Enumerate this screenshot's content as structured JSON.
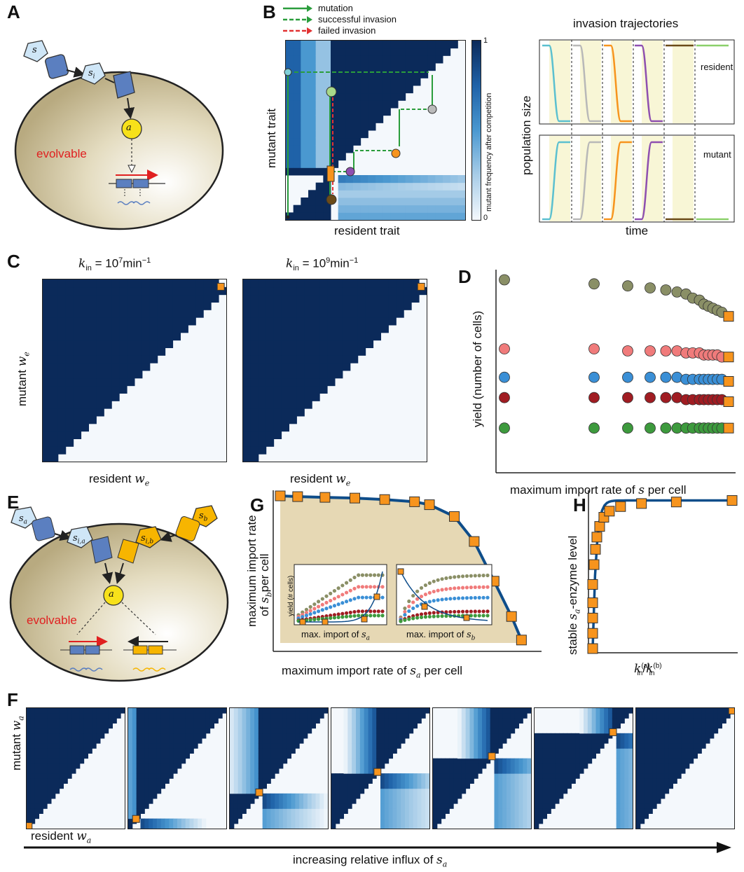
{
  "panels": {
    "A": {
      "letter": "A",
      "evolvable": "evolvable",
      "s": "s",
      "si": "s",
      "si_sub": "i",
      "a": "a"
    },
    "B": {
      "letter": "B",
      "legend": [
        "mutation",
        "successful invasion",
        "failed invasion"
      ],
      "ylabel": "mutant trait",
      "xlabel": "resident trait",
      "colorbar_label": "mutant frequency after competition",
      "colorbar_ticks": [
        "1",
        "0"
      ],
      "traj_title": "invasion trajectories",
      "traj_ylabel": "population size",
      "traj_xlabel": "time",
      "traj_resident": "resident",
      "traj_mutant": "mutant",
      "colors": {
        "mutation": "#2a9d3c",
        "success": "#2a9d3c",
        "failed": "#e23232"
      }
    },
    "C": {
      "letter": "C",
      "title1_pre": "k",
      "title1_sub": "in",
      "title1_eq": " = 10",
      "title1_exp": "7",
      "title1_unit": "min",
      "title1_unit_exp": "−1",
      "title2_pre": "k",
      "title2_sub": "in",
      "title2_eq": " = 10",
      "title2_exp": "9",
      "title2_unit": "min",
      "title2_unit_exp": "−1",
      "ylabel": "mutant ",
      "ylabel_var": "w",
      "ylabel_sub": "e",
      "xlabel": "resident ",
      "xlabel_var": "w",
      "xlabel_sub": "e"
    },
    "D": {
      "letter": "D",
      "ylabel": "yield (number of cells)",
      "xlabel": "maximum import rate of ",
      "xlabel_var": "s",
      "xlabel_end": " per cell"
    },
    "E": {
      "letter": "E",
      "evolvable": "evolvable",
      "sa": "s",
      "sa_sub": "a",
      "sb": "s",
      "sb_sub": "b",
      "sia": "s",
      "sia_sub": "i,a",
      "sib": "s",
      "sib_sub": "i,b",
      "a": "a"
    },
    "G": {
      "letter": "G",
      "ylabel1": "maximum import rate",
      "ylabel2": "of ",
      "ylabel2_var": "s",
      "ylabel2_sub": "b",
      "ylabel2_end": "per cell",
      "xlabel": "maximum import rate of ",
      "xlabel_var": "s",
      "xlabel_sub": "a",
      "xlabel_end": " per cell",
      "inset_ylabel": "yield (# cells)",
      "inset1_xlabel": "max. import of ",
      "inset1_var": "s",
      "inset1_sub": "a",
      "inset2_xlabel": "max. import of ",
      "inset2_var": "s",
      "inset2_sub": "b"
    },
    "H": {
      "letter": "H",
      "ylabel_pre": "stable  ",
      "ylabel_var": "s",
      "ylabel_sub": "a",
      "ylabel_end": "-enzyme level",
      "xlabel_k": "k",
      "xlabel_sup_a": "(a)",
      "xlabel_sup_b": "(b)",
      "xlabel_sub": "in"
    },
    "F": {
      "letter": "F",
      "ylabel": "mutant ",
      "ylabel_var": "w",
      "ylabel_sub": "a",
      "xlabel": "resident ",
      "xlabel_var": "w",
      "xlabel_sub": "a",
      "arrow_label": "increasing relative influx of ",
      "arrow_var": "s",
      "arrow_sub": "a"
    }
  },
  "colors": {
    "navy": "#0b2a5a",
    "pale": "#f4f8fc",
    "orange": "#f7941d",
    "cell": "#d9cfae",
    "frontier": "#e6d8b4",
    "enzyme_blue": "#5b7fc0",
    "enzyme_yellow": "#f7b500",
    "substrate": "#cfe6f7"
  },
  "chart_data": [
    {
      "type": "scatter",
      "title": "",
      "panel": "D",
      "xlabel": "maximum import rate of s per cell",
      "ylabel": "yield (number of cells)",
      "series": [
        {
          "color": "#8a8f66",
          "x": [
            0,
            0.4,
            0.55,
            0.65,
            0.72,
            0.77,
            0.81,
            0.84,
            0.87,
            0.89,
            0.91,
            0.93,
            0.95,
            0.97,
            1.0
          ],
          "y": [
            0.95,
            0.93,
            0.92,
            0.91,
            0.9,
            0.89,
            0.88,
            0.86,
            0.85,
            0.83,
            0.82,
            0.81,
            0.8,
            0.79,
            0.77
          ]
        },
        {
          "color": "#f07b7b",
          "x": [
            0,
            0.4,
            0.55,
            0.65,
            0.72,
            0.77,
            0.81,
            0.84,
            0.87,
            0.89,
            0.91,
            0.93,
            0.95,
            0.97,
            1.0
          ],
          "y": [
            0.61,
            0.61,
            0.6,
            0.6,
            0.6,
            0.6,
            0.59,
            0.59,
            0.59,
            0.58,
            0.58,
            0.58,
            0.58,
            0.57,
            0.57
          ]
        },
        {
          "color": "#3a8fd6",
          "x": [
            0,
            0.4,
            0.55,
            0.65,
            0.72,
            0.77,
            0.81,
            0.84,
            0.87,
            0.89,
            0.91,
            0.93,
            0.95,
            0.97,
            1.0
          ],
          "y": [
            0.47,
            0.47,
            0.47,
            0.47,
            0.47,
            0.47,
            0.46,
            0.46,
            0.46,
            0.46,
            0.46,
            0.46,
            0.46,
            0.46,
            0.45
          ]
        },
        {
          "color": "#a01c22",
          "x": [
            0,
            0.4,
            0.55,
            0.65,
            0.72,
            0.77,
            0.81,
            0.84,
            0.87,
            0.89,
            0.91,
            0.93,
            0.95,
            0.97,
            1.0
          ],
          "y": [
            0.37,
            0.37,
            0.37,
            0.37,
            0.37,
            0.37,
            0.36,
            0.36,
            0.36,
            0.36,
            0.36,
            0.36,
            0.36,
            0.36,
            0.35
          ]
        },
        {
          "color": "#3d9a3d",
          "x": [
            0,
            0.4,
            0.55,
            0.65,
            0.72,
            0.77,
            0.81,
            0.84,
            0.87,
            0.89,
            0.91,
            0.93,
            0.95,
            0.97,
            1.0
          ],
          "y": [
            0.22,
            0.22,
            0.22,
            0.22,
            0.22,
            0.22,
            0.22,
            0.22,
            0.22,
            0.22,
            0.22,
            0.22,
            0.22,
            0.22,
            0.22
          ]
        }
      ]
    },
    {
      "type": "line",
      "title": "",
      "panel": "G",
      "xlabel": "maximum import rate of s_a per cell",
      "ylabel": "maximum import rate of s_b per cell",
      "x": [
        0.0,
        0.07,
        0.18,
        0.3,
        0.42,
        0.54,
        0.6,
        0.7,
        0.78,
        0.86,
        0.93,
        0.97
      ],
      "y": [
        1.0,
        0.995,
        0.99,
        0.985,
        0.975,
        0.96,
        0.94,
        0.86,
        0.69,
        0.42,
        0.18,
        0.02
      ]
    },
    {
      "type": "line",
      "title": "",
      "panel": "H",
      "xlabel": "k_in^(a)/k_in^(b)",
      "ylabel": "stable s_a-enzyme level",
      "x": [
        0.0,
        0.0,
        0.0,
        0.0,
        0.0,
        0.01,
        0.02,
        0.03,
        0.05,
        0.08,
        0.12,
        0.2,
        0.35,
        0.6,
        1.0
      ],
      "y": [
        0.0,
        0.1,
        0.2,
        0.3,
        0.42,
        0.55,
        0.65,
        0.73,
        0.8,
        0.86,
        0.9,
        0.93,
        0.95,
        0.96,
        0.97
      ]
    }
  ]
}
